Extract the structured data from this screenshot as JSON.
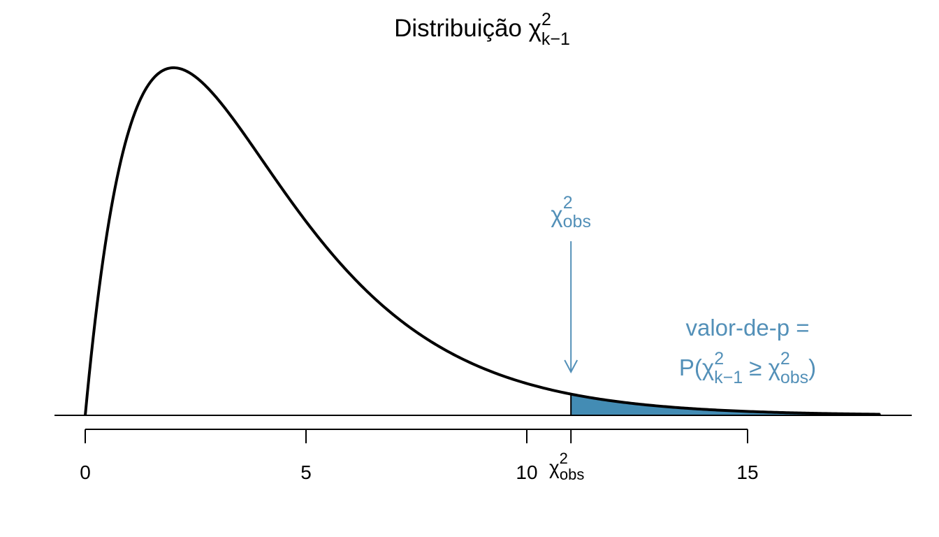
{
  "chart_data": {
    "type": "area",
    "title": {
      "text": "Distribuição χ",
      "sup": "2",
      "sub": "k−1"
    },
    "xlabel": "",
    "ylabel": "",
    "curve": {
      "distribution": "chi-square",
      "df": 4,
      "x_range": [
        0,
        18
      ]
    },
    "x": [
      0,
      0.5,
      1,
      1.5,
      2,
      2.5,
      3,
      3.5,
      4,
      4.5,
      5,
      5.5,
      6,
      6.5,
      7,
      7.5,
      8,
      8.5,
      9,
      9.5,
      10,
      10.5,
      11,
      11.5,
      12,
      12.5,
      13,
      13.5,
      14,
      14.5,
      15,
      15.5,
      16,
      16.5,
      17,
      17.5,
      18
    ],
    "y": [
      0,
      0.0974,
      0.1516,
      0.1771,
      0.1839,
      0.1791,
      0.1673,
      0.1516,
      0.1353,
      0.1186,
      0.1026,
      0.088,
      0.0747,
      0.0629,
      0.0528,
      0.0441,
      0.0366,
      0.0303,
      0.025,
      0.0206,
      0.0168,
      0.0137,
      0.0112,
      0.0091,
      0.0074,
      0.006,
      0.0049,
      0.0039,
      0.0032,
      0.0026,
      0.0021,
      0.0017,
      0.0013,
      0.0011,
      0.0009,
      0.0007,
      0.0006
    ],
    "xlim": [
      0,
      18
    ],
    "ylim": [
      0,
      0.1839
    ],
    "x_ticks": [
      {
        "value": 0,
        "label": "0"
      },
      {
        "value": 5,
        "label": "5"
      },
      {
        "value": 10,
        "label": "10"
      },
      {
        "value": 15,
        "label": "15"
      }
    ],
    "observed": {
      "value": 11,
      "tick_label": {
        "base": "χ",
        "sup": "2",
        "sub": "obs"
      }
    },
    "shaded_region": {
      "from": 11,
      "to": 18,
      "color": "#438CB4"
    },
    "annotation_arrow_label": {
      "base": "χ",
      "sup": "2",
      "sub": "obs"
    },
    "pvalue_label": {
      "line1": "valor-de-p =",
      "line2": {
        "open": "P(χ",
        "sup1": "2",
        "sub1": "k−1",
        "mid": " ≥ χ",
        "sup2": "2",
        "sub2": "obs",
        "close": ")"
      }
    },
    "colors": {
      "curve": "#000000",
      "shade": "#438CB4",
      "annotation": "#5390B8"
    },
    "grid": false
  }
}
